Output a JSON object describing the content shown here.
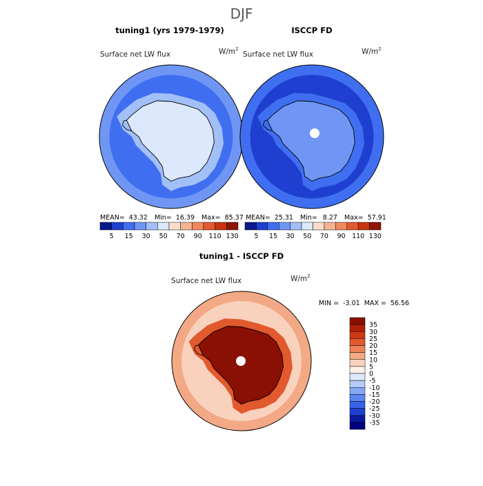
{
  "figure_title": "DJF",
  "panels": [
    {
      "title": "tuning1 (yrs 1979-1979)",
      "variable": "Surface net LW flux",
      "units": "W/m",
      "units_exp": "2",
      "stats": {
        "mean_label": "MEAN=",
        "mean": "43.32",
        "min_label": "Min=",
        "min": "16.39",
        "max_label": "Max=",
        "max": "85.37"
      },
      "colorbar_ticks": [
        "5",
        "15",
        "30",
        "50",
        "70",
        "90",
        "110",
        "130"
      ]
    },
    {
      "title": "ISCCP FD",
      "variable": "Surface net LW flux",
      "units": "W/m",
      "units_exp": "2",
      "stats": {
        "mean_label": "MEAN=",
        "mean": "25.31",
        "min_label": "Min=",
        "min": "8.27",
        "max_label": "Max=",
        "max": "57.91"
      },
      "colorbar_ticks": [
        "5",
        "15",
        "30",
        "50",
        "70",
        "90",
        "110",
        "130"
      ]
    },
    {
      "title": "tuning1 - ISCCP FD",
      "variable": "Surface net LW flux",
      "units": "W/m",
      "units_exp": "2",
      "stats": {
        "min_label": "MIN =",
        "min": "-3.01",
        "max_label": "MAX =",
        "max": "56.56"
      },
      "colorbar_ticks": [
        "35",
        "30",
        "25",
        "20",
        "15",
        "10",
        "5",
        "0",
        "-5",
        "-10",
        "-15",
        "-20",
        "-25",
        "-30",
        "-35"
      ]
    }
  ],
  "chart_data": [
    {
      "type": "heatmap",
      "projection": "south polar stereographic",
      "title": "tuning1 (yrs 1979-1979)",
      "variable": "Surface net LW flux",
      "units": "W/m2",
      "mean": 43.32,
      "min": 16.39,
      "max": 85.37,
      "levels": [
        5,
        15,
        30,
        50,
        70,
        90,
        110,
        130
      ],
      "colors": [
        "#0a1a8c",
        "#1f3fd1",
        "#3f6ff0",
        "#6f96f4",
        "#a2bff8",
        "#dce8fb",
        "#fbdccc",
        "#f6b394",
        "#ef8a5e",
        "#e35a2e",
        "#c8320f",
        "#8e1505"
      ],
      "field": {
        "ocean_mid_lat": 25,
        "ocean_outer": 33,
        "coast_ring": 50,
        "continent": 72
      }
    },
    {
      "type": "heatmap",
      "projection": "south polar stereographic",
      "title": "ISCCP FD",
      "variable": "Surface net LW flux",
      "units": "W/m2",
      "mean": 25.31,
      "min": 8.27,
      "max": 57.91,
      "levels": [
        5,
        15,
        30,
        50,
        70,
        90,
        110,
        130
      ],
      "colors": [
        "#0a1a8c",
        "#1f3fd1",
        "#3f6ff0",
        "#6f96f4",
        "#a2bff8",
        "#dce8fb",
        "#fbdccc",
        "#f6b394",
        "#ef8a5e",
        "#e35a2e",
        "#c8320f",
        "#8e1505"
      ],
      "field": {
        "ocean_mid_lat": 12,
        "ocean_outer": 20,
        "coast_ring": 28,
        "continent": 45
      }
    },
    {
      "type": "heatmap",
      "projection": "south polar stereographic",
      "title": "tuning1 - ISCCP FD",
      "variable": "Surface net LW flux",
      "units": "W/m2",
      "min": -3.01,
      "max": 56.56,
      "levels": [
        -35,
        -30,
        -25,
        -20,
        -15,
        -10,
        -5,
        0,
        5,
        10,
        15,
        20,
        25,
        30,
        35
      ],
      "colors": [
        "#000080",
        "#0a1a9c",
        "#1f3fd1",
        "#3564e6",
        "#5b86ef",
        "#86a8f4",
        "#b4cbf8",
        "#dde8fb",
        "#fdf0e8",
        "#f9d2bd",
        "#f3a985",
        "#ec8357",
        "#e2592d",
        "#cd3a12",
        "#b02008",
        "#8a1003"
      ],
      "field": {
        "ocean_mid_lat": 8,
        "ocean_outer": 11,
        "coast_ring": 22,
        "continent": 38
      }
    }
  ]
}
